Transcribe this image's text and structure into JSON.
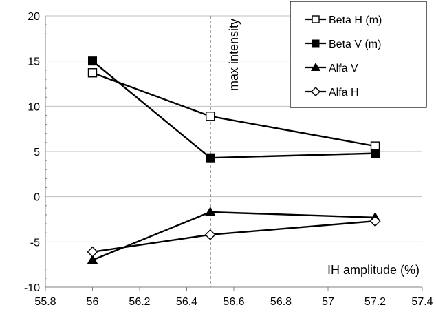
{
  "chart_data": {
    "type": "line",
    "title": "",
    "xlabel": "",
    "ylabel": "",
    "xlim": [
      55.8,
      57.4
    ],
    "ylim": [
      -10,
      20
    ],
    "x_ticks": [
      "55.8",
      "56",
      "56.2",
      "56.4",
      "56.6",
      "56.8",
      "57",
      "57.2",
      "57.4"
    ],
    "y_ticks": [
      "20",
      "15",
      "10",
      "5",
      "0",
      "-5",
      "-10"
    ],
    "x": [
      56,
      56.5,
      57.2
    ],
    "grid": "horizontal",
    "legend_placement": "top-right",
    "series": [
      {
        "name": "Beta H (m)",
        "marker": "open-square",
        "values": [
          13.7,
          8.9,
          5.6
        ]
      },
      {
        "name": "Beta V (m)",
        "marker": "filled-square",
        "values": [
          15.0,
          4.3,
          4.8
        ]
      },
      {
        "name": "Alfa V",
        "marker": "filled-triangle",
        "values": [
          -7.0,
          -1.7,
          -2.3
        ]
      },
      {
        "name": "Alfa H",
        "marker": "open-diamond",
        "values": [
          -6.1,
          -4.2,
          -2.7
        ]
      }
    ],
    "annotations": [
      {
        "text": "max intensity",
        "type": "vertical-dashed-line",
        "x": 56.5
      },
      {
        "text": "IH amplitude (%)",
        "position": "bottom-right"
      }
    ],
    "colors": {
      "line": "#000000",
      "grid": "#bfbfbf",
      "background": "#ffffff"
    }
  }
}
